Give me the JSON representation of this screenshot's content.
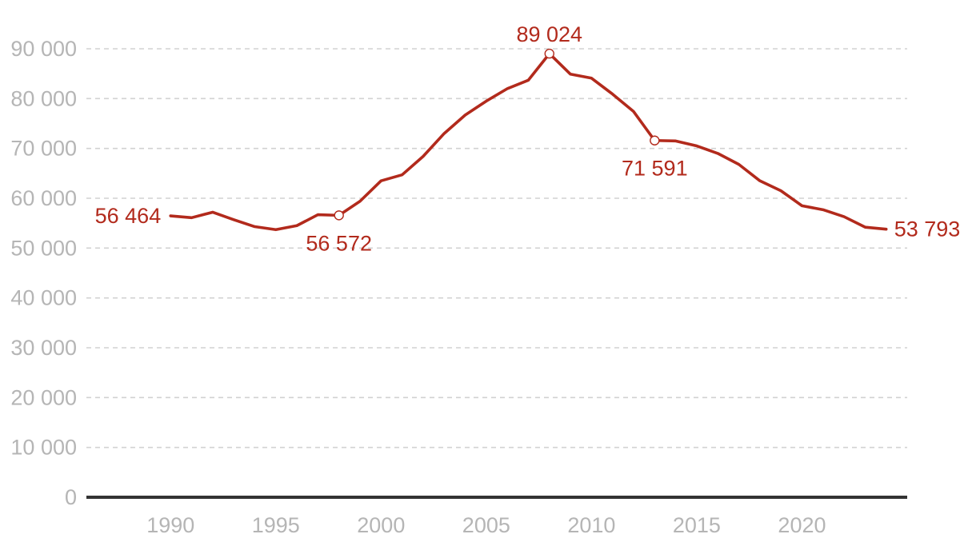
{
  "chart_data": {
    "type": "line",
    "title": "",
    "xlabel": "",
    "ylabel": "",
    "xlim": [
      1986,
      2025
    ],
    "ylim": [
      0,
      90000
    ],
    "y_ticks": [
      0,
      10000,
      20000,
      30000,
      40000,
      50000,
      60000,
      70000,
      80000,
      90000
    ],
    "y_tick_labels": [
      "0",
      "10 000",
      "20 000",
      "30 000",
      "40 000",
      "50 000",
      "60 000",
      "70 000",
      "80 000",
      "90 000"
    ],
    "x_ticks": [
      1990,
      1995,
      2000,
      2005,
      2010,
      2015,
      2020
    ],
    "x_tick_labels": [
      "1990",
      "1995",
      "2000",
      "2005",
      "2010",
      "2015",
      "2020"
    ],
    "grid": true,
    "legend": "none",
    "colors": {
      "line": "#b22a1c",
      "label": "#b22a1c",
      "grid": "#d2d2d2",
      "tick_text": "#b5b5b5",
      "baseline": "#333333"
    },
    "series": [
      {
        "x": [
          1990,
          1991,
          1992,
          1993,
          1994,
          1995,
          1996,
          1997,
          1998,
          1999,
          2000,
          2001,
          2002,
          2003,
          2004,
          2005,
          2006,
          2007,
          2008,
          2009,
          2010,
          2011,
          2012,
          2013,
          2014,
          2015,
          2016,
          2017,
          2018,
          2019,
          2020,
          2021,
          2022,
          2023,
          2024
        ],
        "values": [
          56464,
          56100,
          57200,
          55700,
          54300,
          53700,
          54500,
          56700,
          56572,
          59400,
          63500,
          64700,
          68400,
          73000,
          76700,
          79500,
          82000,
          83700,
          89024,
          84900,
          84100,
          80900,
          77400,
          71591,
          71500,
          70500,
          69000,
          66800,
          63500,
          61500,
          58500,
          57700,
          56300,
          54200,
          53793
        ]
      }
    ],
    "annotations": [
      {
        "x": 1990,
        "y": 56464,
        "text": "56 464",
        "position": "left",
        "marker": false
      },
      {
        "x": 1998,
        "y": 56572,
        "text": "56 572",
        "position": "below",
        "marker": true
      },
      {
        "x": 2008,
        "y": 89024,
        "text": "89 024",
        "position": "above",
        "marker": true
      },
      {
        "x": 2013,
        "y": 71591,
        "text": "71 591",
        "position": "below",
        "marker": true
      },
      {
        "x": 2024,
        "y": 53793,
        "text": "53 793",
        "position": "right",
        "marker": false
      }
    ]
  }
}
